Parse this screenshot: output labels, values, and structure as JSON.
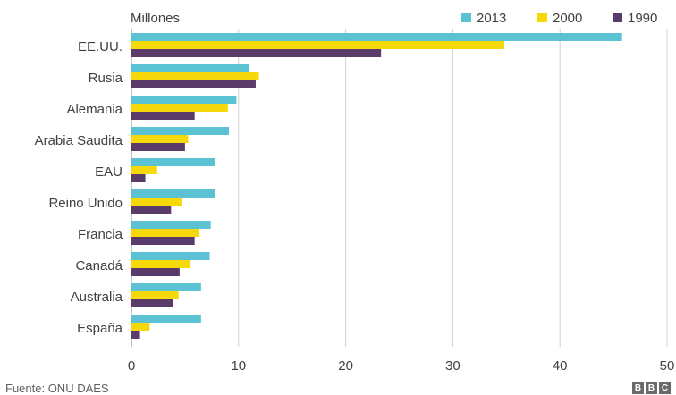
{
  "chart_data": {
    "type": "bar",
    "orientation": "horizontal",
    "unit_label": "Millones",
    "categories": [
      "EE.UU.",
      "Rusia",
      "Alemania",
      "Arabia Saudita",
      "EAU",
      "Reino Unido",
      "Francia",
      "Canadá",
      "Australia",
      "España"
    ],
    "series": [
      {
        "name": "2013",
        "color": "#5bc2d4",
        "values": [
          45.8,
          11.0,
          9.8,
          9.1,
          7.8,
          7.8,
          7.4,
          7.3,
          6.5,
          6.5
        ]
      },
      {
        "name": "2000",
        "color": "#f5d90a",
        "values": [
          34.8,
          11.9,
          9.0,
          5.3,
          2.4,
          4.7,
          6.3,
          5.5,
          4.4,
          1.7
        ]
      },
      {
        "name": "1990",
        "color": "#5a3c6b",
        "values": [
          23.3,
          11.6,
          5.9,
          5.0,
          1.3,
          3.7,
          5.9,
          4.5,
          3.9,
          0.8
        ]
      }
    ],
    "xlim": [
      0,
      50
    ],
    "xticks": [
      0,
      10,
      20,
      30,
      40,
      50
    ],
    "grid": true,
    "legend_position": "top-right"
  },
  "source": "Fuente: ONU DAES",
  "logo_letters": [
    "B",
    "B",
    "C"
  ]
}
